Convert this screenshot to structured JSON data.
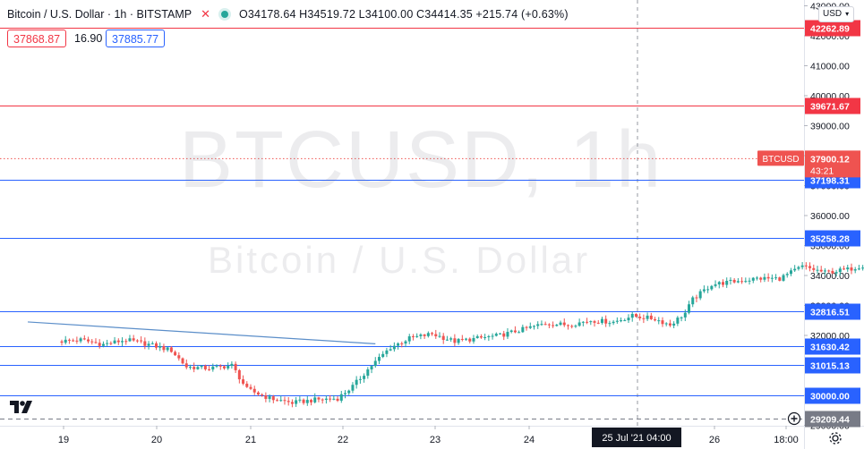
{
  "header": {
    "symbol": "Bitcoin / U.S. Dollar · 1h · BITSTAMP",
    "open": "O34178.64",
    "high": "H34519.72",
    "low": "L34100.00",
    "close": "C34414.35",
    "change": "+215.74 (+0.63%)"
  },
  "trade": {
    "sell": "37868.87",
    "spread": "16.90",
    "buy": "37885.77"
  },
  "watermark": {
    "line1": "BTCUSD, 1h",
    "line2": "Bitcoin / U.S. Dollar"
  },
  "currency_button": "USD",
  "chart_data": {
    "type": "candlestick",
    "symbol": "BTCUSD",
    "timeframe": "1h",
    "x_ticks": [
      "19",
      "20",
      "21",
      "22",
      "23",
      "24",
      "26",
      "18:00"
    ],
    "crosshair_time_label": "25 Jul '21   04:00",
    "y_ticks": [
      29000,
      30000,
      31000,
      32000,
      33000,
      34000,
      35000,
      36000,
      37000,
      38000,
      39000,
      40000,
      41000,
      42000,
      43000
    ],
    "ylim": [
      28800,
      43200
    ],
    "current_price": {
      "label": "BTCUSD",
      "value": 37900.12,
      "countdown": "43:21"
    },
    "levels": [
      {
        "value": 42262.89,
        "label": "42262.89",
        "color": "#f23645"
      },
      {
        "value": 39671.67,
        "label": "39671.67",
        "color": "#f23645"
      },
      {
        "value": 37198.31,
        "label": "37198.31",
        "color": "#2962ff"
      },
      {
        "value": 35258.28,
        "label": "35258.28",
        "color": "#2962ff"
      },
      {
        "value": 32816.51,
        "label": "32816.51",
        "color": "#2962ff"
      },
      {
        "value": 31630.42,
        "label": "31630.42",
        "color": "#2962ff"
      },
      {
        "value": 31015.13,
        "label": "31015.13",
        "color": "#2962ff"
      },
      {
        "value": 30000.0,
        "label": "30000.00",
        "color": "#2962ff"
      },
      {
        "value": 29209.44,
        "label": "29209.44",
        "color": "#787b86"
      }
    ],
    "trendline": [
      {
        "t": -9,
        "p": 32450
      },
      {
        "t": 83,
        "p": 31720
      }
    ],
    "price_path": [
      [
        0,
        31800
      ],
      [
        6,
        31850
      ],
      [
        12,
        31700
      ],
      [
        18,
        31850
      ],
      [
        24,
        31700
      ],
      [
        30,
        31500
      ],
      [
        34,
        30950
      ],
      [
        40,
        30900
      ],
      [
        46,
        31000
      ],
      [
        50,
        30200
      ],
      [
        56,
        29900
      ],
      [
        62,
        29750
      ],
      [
        68,
        29850
      ],
      [
        74,
        29900
      ],
      [
        78,
        30300
      ],
      [
        83,
        31000
      ],
      [
        88,
        31600
      ],
      [
        93,
        31900
      ],
      [
        99,
        32050
      ],
      [
        105,
        31800
      ],
      [
        111,
        31900
      ],
      [
        117,
        32000
      ],
      [
        123,
        32200
      ],
      [
        129,
        32400
      ],
      [
        135,
        32350
      ],
      [
        141,
        32500
      ],
      [
        147,
        32450
      ],
      [
        152,
        32650
      ],
      [
        158,
        32550
      ],
      [
        162,
        32350
      ],
      [
        166,
        32750
      ],
      [
        168,
        33200
      ],
      [
        173,
        33700
      ],
      [
        179,
        33800
      ],
      [
        185,
        33900
      ],
      [
        191,
        33900
      ],
      [
        197,
        34300
      ],
      [
        203,
        34100
      ],
      [
        209,
        34200
      ],
      [
        215,
        34400
      ],
      [
        221,
        34500
      ],
      [
        227,
        34350
      ],
      [
        233,
        34250
      ],
      [
        239,
        34450
      ],
      [
        245,
        34450
      ],
      [
        249,
        34900
      ],
      [
        251,
        36400
      ],
      [
        253,
        37500
      ],
      [
        256,
        38200
      ],
      [
        259,
        38500
      ],
      [
        262,
        38550
      ],
      [
        265,
        38100
      ],
      [
        268,
        37900
      ]
    ]
  }
}
